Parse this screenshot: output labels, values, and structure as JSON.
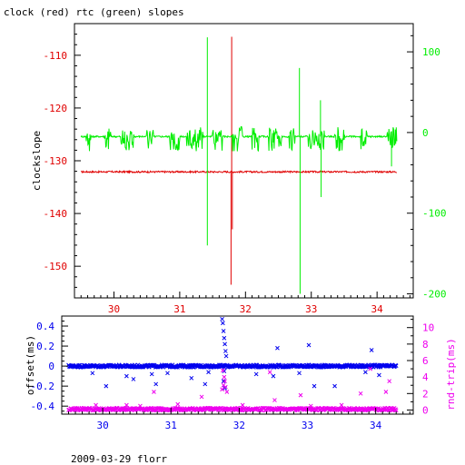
{
  "title": "clock (red) rtc (green) slopes",
  "footer": "2009-03-29 florr",
  "colors": {
    "clock": "#e00000",
    "rtc": "#00ee00",
    "offset": "#0000ee",
    "rndtrip": "#ee00ee",
    "axis": "#000000"
  },
  "chart_data": [
    {
      "type": "line",
      "title": "clock (red) rtc (green) slopes",
      "xlabel": "",
      "xlim": [
        29.4,
        34.55
      ],
      "xticks": [
        30,
        31,
        32,
        33,
        34
      ],
      "ylabel": "clockslope",
      "ylim": [
        -156,
        -104
      ],
      "yticks": [
        -150,
        -140,
        -130,
        -120,
        -110
      ],
      "y2label": "",
      "y2lim": [
        -205,
        135
      ],
      "y2ticks": [
        -200,
        -100,
        0,
        100
      ],
      "grid": false,
      "series": [
        {
          "name": "clock",
          "axis": "left",
          "color": "red",
          "baseline": -132.1,
          "x_range": [
            29.5,
            34.3
          ],
          "spikes": [
            {
              "x": 31.79,
              "y": -106.5
            },
            {
              "x": 31.78,
              "y": -153.5
            },
            {
              "x": 31.8,
              "y": -143
            }
          ]
        },
        {
          "name": "rtc",
          "axis": "right",
          "color": "green",
          "baseline": -5,
          "x_range": [
            29.5,
            34.3
          ],
          "noise_bursts": [
            [
              29.58,
              29.65
            ],
            [
              29.85,
              29.95
            ],
            [
              30.1,
              30.3
            ],
            [
              30.5,
              30.6
            ],
            [
              30.85,
              31.0
            ],
            [
              31.1,
              31.35
            ],
            [
              31.5,
              31.65
            ],
            [
              31.8,
              31.95
            ],
            [
              32.1,
              32.2
            ],
            [
              32.35,
              32.55
            ],
            [
              32.65,
              32.75
            ],
            [
              32.95,
              33.2
            ],
            [
              33.35,
              33.5
            ],
            [
              33.75,
              33.85
            ],
            [
              34.15,
              34.3
            ]
          ],
          "spikes": [
            {
              "x": 31.42,
              "y": 118
            },
            {
              "x": 31.42,
              "y": -140
            },
            {
              "x": 32.83,
              "y": -200
            },
            {
              "x": 32.82,
              "y": 80
            },
            {
              "x": 33.15,
              "y": -80
            },
            {
              "x": 33.14,
              "y": 40
            },
            {
              "x": 34.22,
              "y": -42
            }
          ]
        }
      ]
    },
    {
      "type": "scatter",
      "xlabel": "",
      "xlim": [
        29.4,
        34.55
      ],
      "xticks": [
        30,
        31,
        32,
        33,
        34
      ],
      "ylabel": "offset(ms)",
      "ylim": [
        -0.48,
        0.5
      ],
      "yticks": [
        -0.4,
        -0.2,
        0,
        0.2,
        0.4
      ],
      "y2label": "rnd-trip(ms)",
      "y2lim": [
        -0.5,
        11.4
      ],
      "y2ticks": [
        0,
        2,
        4,
        6,
        8,
        10
      ],
      "grid": false,
      "series": [
        {
          "name": "offset",
          "axis": "left",
          "color": "blue",
          "marker": "x",
          "baseline": 0,
          "outliers": [
            {
              "x": 29.85,
              "y": -0.07
            },
            {
              "x": 30.05,
              "y": -0.2
            },
            {
              "x": 30.35,
              "y": -0.1
            },
            {
              "x": 30.45,
              "y": -0.13
            },
            {
              "x": 30.72,
              "y": -0.08
            },
            {
              "x": 30.95,
              "y": -0.07
            },
            {
              "x": 31.3,
              "y": -0.12
            },
            {
              "x": 31.55,
              "y": -0.06
            },
            {
              "x": 31.75,
              "y": 0.47
            },
            {
              "x": 31.76,
              "y": 0.43
            },
            {
              "x": 31.77,
              "y": 0.35
            },
            {
              "x": 31.78,
              "y": 0.28
            },
            {
              "x": 31.79,
              "y": 0.22
            },
            {
              "x": 31.8,
              "y": 0.15
            },
            {
              "x": 31.81,
              "y": 0.1
            },
            {
              "x": 31.78,
              "y": -0.05
            },
            {
              "x": 31.77,
              "y": -0.15
            },
            {
              "x": 31.79,
              "y": -0.22
            },
            {
              "x": 32.25,
              "y": -0.08
            },
            {
              "x": 32.5,
              "y": -0.1
            },
            {
              "x": 32.56,
              "y": 0.18
            },
            {
              "x": 32.88,
              "y": -0.07
            },
            {
              "x": 33.02,
              "y": 0.21
            },
            {
              "x": 33.1,
              "y": -0.2
            },
            {
              "x": 33.4,
              "y": -0.2
            },
            {
              "x": 33.85,
              "y": -0.06
            },
            {
              "x": 33.94,
              "y": 0.16
            },
            {
              "x": 34.05,
              "y": -0.09
            },
            {
              "x": 30.78,
              "y": -0.18
            },
            {
              "x": 31.5,
              "y": -0.18
            }
          ]
        },
        {
          "name": "rnd-trip",
          "axis": "right",
          "color": "magenta",
          "marker": "x",
          "baseline": 0.1,
          "outliers": [
            {
              "x": 29.9,
              "y": 0.6
            },
            {
              "x": 30.35,
              "y": 0.6
            },
            {
              "x": 30.55,
              "y": 0.5
            },
            {
              "x": 30.75,
              "y": 2.2
            },
            {
              "x": 31.1,
              "y": 0.7
            },
            {
              "x": 31.45,
              "y": 1.6
            },
            {
              "x": 31.75,
              "y": 2.5
            },
            {
              "x": 31.77,
              "y": 3.0
            },
            {
              "x": 31.79,
              "y": 3.5
            },
            {
              "x": 31.78,
              "y": 4.0
            },
            {
              "x": 31.8,
              "y": 2.8
            },
            {
              "x": 31.82,
              "y": 2.2
            },
            {
              "x": 31.76,
              "y": 4.8
            },
            {
              "x": 32.05,
              "y": 0.6
            },
            {
              "x": 32.45,
              "y": 4.6
            },
            {
              "x": 32.52,
              "y": 1.2
            },
            {
              "x": 32.9,
              "y": 1.8
            },
            {
              "x": 33.05,
              "y": 0.5
            },
            {
              "x": 33.5,
              "y": 0.6
            },
            {
              "x": 33.78,
              "y": 2.0
            },
            {
              "x": 33.92,
              "y": 5.0
            },
            {
              "x": 34.15,
              "y": 2.2
            },
            {
              "x": 34.2,
              "y": 3.5
            }
          ]
        }
      ]
    }
  ]
}
